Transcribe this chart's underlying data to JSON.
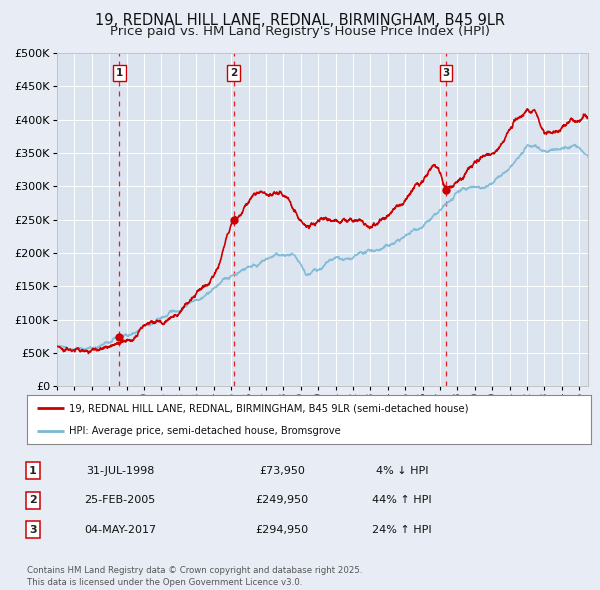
{
  "title": "19, REDNAL HILL LANE, REDNAL, BIRMINGHAM, B45 9LR",
  "subtitle": "Price paid vs. HM Land Registry's House Price Index (HPI)",
  "ylim": [
    0,
    500000
  ],
  "yticks": [
    0,
    50000,
    100000,
    150000,
    200000,
    250000,
    300000,
    350000,
    400000,
    450000,
    500000
  ],
  "xlim_start": 1995.0,
  "xlim_end": 2025.5,
  "background_color": "#e8edf5",
  "plot_bg_color": "#dce4f0",
  "grid_color": "#ffffff",
  "sale_color": "#cc0000",
  "hpi_color": "#7ab8d4",
  "vline_color": "#dd0000",
  "legend_label_sale": "19, REDNAL HILL LANE, REDNAL, BIRMINGHAM, B45 9LR (semi-detached house)",
  "legend_label_hpi": "HPI: Average price, semi-detached house, Bromsgrove",
  "transaction_labels": [
    "1",
    "2",
    "3"
  ],
  "transaction_dates": [
    1998.58,
    2005.15,
    2017.34
  ],
  "transaction_prices": [
    73950,
    249950,
    294950
  ],
  "transaction_date_strs": [
    "31-JUL-1998",
    "25-FEB-2005",
    "04-MAY-2017"
  ],
  "transaction_price_strs": [
    "£73,950",
    "£249,950",
    "£294,950"
  ],
  "transaction_hpi_strs": [
    "4% ↓ HPI",
    "44% ↑ HPI",
    "24% ↑ HPI"
  ],
  "footer_text": "Contains HM Land Registry data © Crown copyright and database right 2025.\nThis data is licensed under the Open Government Licence v3.0.",
  "title_fontsize": 10.5,
  "subtitle_fontsize": 9.5
}
